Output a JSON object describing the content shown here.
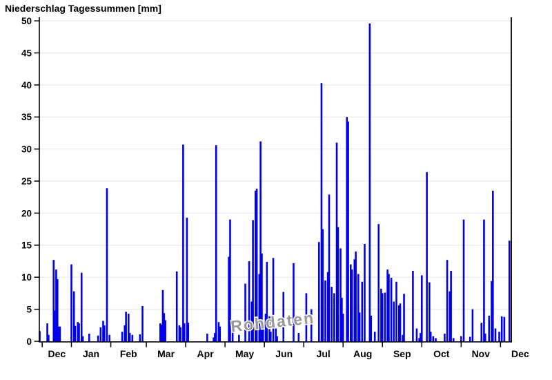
{
  "chart_data": {
    "type": "bar",
    "title": "Niederschlag Tagessummen [mm]",
    "xlabel": "",
    "ylabel": "",
    "ylim": [
      0,
      50
    ],
    "ytick_step": 5,
    "yticks": [
      0,
      5,
      10,
      15,
      20,
      25,
      30,
      35,
      40,
      45,
      50
    ],
    "grid": true,
    "bar_color": "#0000EE",
    "grid_color": "#ECECEC",
    "axis_color": "#000000",
    "month_labels": [
      "Dec",
      "Jan",
      "Feb",
      "Mar",
      "Apr",
      "May",
      "Jun",
      "Jul",
      "Aug",
      "Sep",
      "Oct",
      "Nov",
      "Dec"
    ],
    "month_tick_days": [
      2,
      25,
      56,
      84,
      115,
      146,
      177,
      208,
      239,
      270,
      301,
      332,
      363
    ],
    "axis_end_day": 371.5,
    "last_label_halfspan": 15.5,
    "watermark": {
      "text": "Rohdaten",
      "color": "#979797",
      "rotation_deg": -6
    },
    "bars": [
      [
        0,
        1.6
      ],
      [
        6,
        2.8
      ],
      [
        7,
        1.0
      ],
      [
        11,
        12.7
      ],
      [
        12,
        4.8
      ],
      [
        13,
        11.2
      ],
      [
        14,
        9.7
      ],
      [
        15,
        2.3
      ],
      [
        16,
        2.3
      ],
      [
        25,
        12.0
      ],
      [
        27,
        7.8
      ],
      [
        28,
        2.4
      ],
      [
        30,
        3.0
      ],
      [
        31,
        2.8
      ],
      [
        33,
        10.7
      ],
      [
        34,
        0.8
      ],
      [
        39,
        1.2
      ],
      [
        46,
        0.9
      ],
      [
        48,
        2.2
      ],
      [
        50,
        3.2
      ],
      [
        51,
        2.5
      ],
      [
        53,
        23.9
      ],
      [
        55,
        1.0
      ],
      [
        65,
        1.5
      ],
      [
        67,
        2.5
      ],
      [
        68,
        4.6
      ],
      [
        70,
        4.3
      ],
      [
        71,
        1.3
      ],
      [
        73,
        1.0
      ],
      [
        79,
        1.1
      ],
      [
        81,
        5.5
      ],
      [
        95,
        2.8
      ],
      [
        96,
        2.6
      ],
      [
        97,
        8.0
      ],
      [
        98,
        4.4
      ],
      [
        99,
        3.3
      ],
      [
        108,
        10.9
      ],
      [
        110,
        2.5
      ],
      [
        111,
        2.2
      ],
      [
        113,
        30.7
      ],
      [
        114,
        2.8
      ],
      [
        116,
        19.3
      ],
      [
        117,
        2.9
      ],
      [
        132,
        1.2
      ],
      [
        137,
        0.6
      ],
      [
        138,
        1.3
      ],
      [
        139,
        30.6
      ],
      [
        141,
        3.0
      ],
      [
        142,
        2.3
      ],
      [
        149,
        13.2
      ],
      [
        150,
        19.0
      ],
      [
        152,
        1.9
      ],
      [
        157,
        1.0
      ],
      [
        162,
        9.0
      ],
      [
        165,
        12.5
      ],
      [
        167,
        6.2
      ],
      [
        168,
        18.9
      ],
      [
        170,
        23.5
      ],
      [
        171,
        23.8
      ],
      [
        173,
        10.5
      ],
      [
        174,
        31.2
      ],
      [
        175,
        13.7
      ],
      [
        176,
        3.0
      ],
      [
        178,
        4.3
      ],
      [
        179,
        12.4
      ],
      [
        181,
        3.9
      ],
      [
        182,
        1.5
      ],
      [
        184,
        13.0
      ],
      [
        186,
        2.0
      ],
      [
        187,
        0.8
      ],
      [
        192,
        7.7
      ],
      [
        200,
        12.2
      ],
      [
        204,
        1.3
      ],
      [
        210,
        7.5
      ],
      [
        214,
        5.0
      ],
      [
        220,
        15.5
      ],
      [
        222,
        40.3
      ],
      [
        223,
        17.5
      ],
      [
        225,
        9.5
      ],
      [
        227,
        10.8
      ],
      [
        228,
        22.9
      ],
      [
        230,
        8.5
      ],
      [
        232,
        7.5
      ],
      [
        234,
        31.0
      ],
      [
        235,
        17.8
      ],
      [
        237,
        14.5
      ],
      [
        238,
        6.8
      ],
      [
        239,
        4.3
      ],
      [
        242,
        35.0
      ],
      [
        243,
        34.3
      ],
      [
        245,
        12.0
      ],
      [
        246,
        11.2
      ],
      [
        248,
        12.8
      ],
      [
        249,
        14.0
      ],
      [
        251,
        10.5
      ],
      [
        252,
        4.5
      ],
      [
        254,
        9.3
      ],
      [
        256,
        15.2
      ],
      [
        260,
        49.6
      ],
      [
        261,
        4.0
      ],
      [
        264,
        1.5
      ],
      [
        267,
        18.3
      ],
      [
        269,
        8.2
      ],
      [
        270,
        7.5
      ],
      [
        272,
        7.6
      ],
      [
        274,
        11.2
      ],
      [
        275,
        10.5
      ],
      [
        277,
        9.9
      ],
      [
        279,
        6.2
      ],
      [
        281,
        9.3
      ],
      [
        283,
        5.6
      ],
      [
        284,
        5.9
      ],
      [
        286,
        1.0
      ],
      [
        287,
        7.4
      ],
      [
        294,
        11.0
      ],
      [
        297,
        2.0
      ],
      [
        299,
        0.5
      ],
      [
        300,
        1.3
      ],
      [
        301,
        10.3
      ],
      [
        305,
        26.4
      ],
      [
        307,
        9.2
      ],
      [
        308,
        1.5
      ],
      [
        310,
        0.8
      ],
      [
        312,
        0.5
      ],
      [
        319,
        1.2
      ],
      [
        321,
        12.7
      ],
      [
        323,
        7.8
      ],
      [
        324,
        11.0
      ],
      [
        326,
        0.5
      ],
      [
        332,
        0.8
      ],
      [
        334,
        19.0
      ],
      [
        339,
        0.7
      ],
      [
        341,
        5.0
      ],
      [
        348,
        2.9
      ],
      [
        350,
        19.0
      ],
      [
        351,
        1.2
      ],
      [
        354,
        4.0
      ],
      [
        356,
        9.4
      ],
      [
        357,
        23.5
      ],
      [
        359,
        2.0
      ],
      [
        362,
        1.5
      ],
      [
        364,
        3.9
      ],
      [
        366,
        3.8
      ],
      [
        370,
        15.7
      ]
    ]
  }
}
